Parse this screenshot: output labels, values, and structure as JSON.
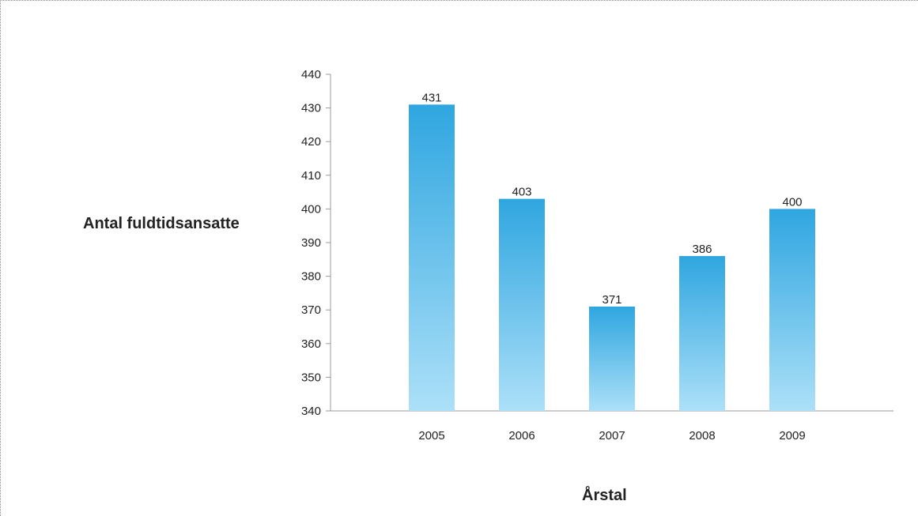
{
  "chart_data": {
    "type": "bar",
    "title": "",
    "xlabel": "Årstal",
    "ylabel": "Antal fuldtidsansatte",
    "categories": [
      "2005",
      "2006",
      "2007",
      "2008",
      "2009"
    ],
    "values": [
      431,
      403,
      371,
      386,
      400
    ],
    "data_labels": [
      "431",
      "403",
      "371",
      "386",
      "400"
    ],
    "ylim": [
      340,
      440
    ],
    "yticks": [
      340,
      350,
      360,
      370,
      380,
      390,
      400,
      410,
      420,
      430,
      440
    ],
    "grid": false,
    "legend": "none",
    "colors": {
      "bar_top": "#2fa6e0",
      "bar_bottom": "#ace0f8",
      "axis": "#9a9a9a"
    }
  }
}
